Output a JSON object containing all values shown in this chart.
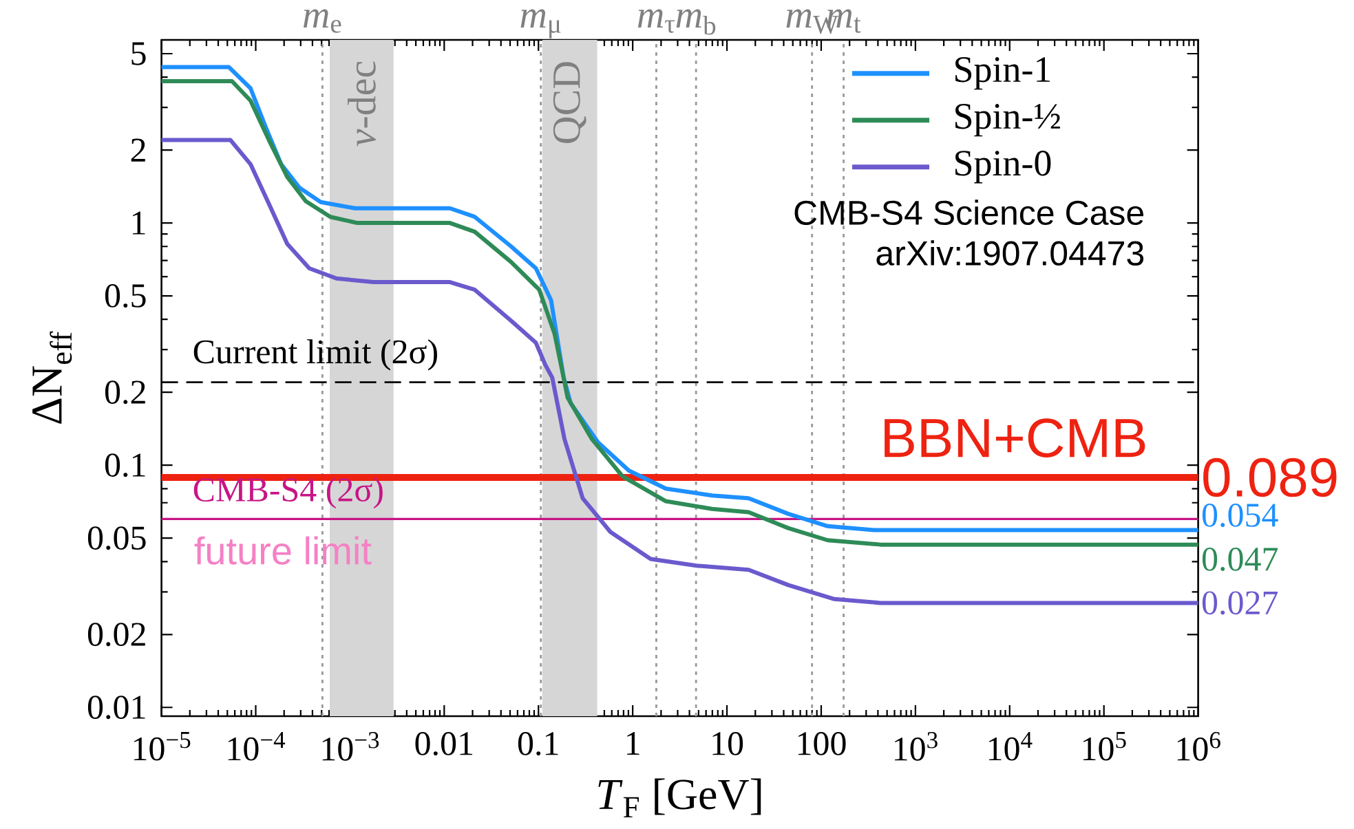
{
  "chart_data": {
    "type": "line",
    "xlabel": "*T*$_{F}$ [GeV]",
    "ylabel": "ΔN$_{eff}$",
    "log": "xy",
    "grid": false,
    "legend": "top right",
    "marker": "none",
    "line_style": "solid",
    "xlim": [
      1e-05,
      1000000.0
    ],
    "ylim": [
      0.0092,
      5.7
    ],
    "xticks": [
      {
        "value": 1e-05,
        "label": "10$^{−5}$"
      },
      {
        "value": 0.0001,
        "label": "10$^{−4}$"
      },
      {
        "value": 0.001,
        "label": "10$^{−3}$"
      },
      0.01,
      0.1,
      1,
      10,
      100,
      {
        "value": 1000,
        "label": "10$^{3}$"
      },
      {
        "value": 10000,
        "label": "10$^{4}$"
      },
      {
        "value": 100000,
        "label": "10$^{5}$"
      },
      {
        "value": 1000000,
        "label": "10$^{6}$"
      }
    ],
    "yticks": [
      0.01,
      0.02,
      0.05,
      0.1,
      0.2,
      0.5,
      1,
      2,
      5
    ],
    "series": [
      {
        "name": "Spin-1",
        "color": "#1e90ff",
        "x": [
          1e-05,
          5.2e-05,
          8.8e-05,
          0.000127,
          0.000186,
          0.00029,
          0.00049,
          0.00113,
          0.0115,
          0.0211,
          0.0513,
          0.094,
          0.136,
          0.185,
          0.22,
          0.43,
          0.91,
          2.25,
          6.95,
          17,
          44.7,
          117,
          363,
          1000000.0
        ],
        "values": [
          4.4,
          4.4,
          3.6,
          2.5,
          1.75,
          1.4,
          1.22,
          1.15,
          1.15,
          1.06,
          0.8,
          0.65,
          0.48,
          0.23,
          0.18,
          0.124,
          0.095,
          0.08,
          0.075,
          0.073,
          0.063,
          0.056,
          0.054,
          0.054
        ],
        "value_labels": [
          null,
          null,
          null,
          null,
          null,
          null,
          null,
          null,
          null,
          null,
          null,
          null,
          null,
          null,
          null,
          null,
          null,
          null,
          null,
          null,
          null,
          null,
          null,
          "0.054"
        ]
      },
      {
        "name": "Spin-½",
        "color": "#2e8b57",
        "x": [
          1e-05,
          5.6e-05,
          8.8e-05,
          0.000138,
          0.000216,
          0.00034,
          0.00062,
          0.0012,
          0.0115,
          0.0211,
          0.0513,
          0.102,
          0.148,
          0.185,
          0.204,
          0.37,
          0.78,
          2.25,
          6.95,
          17,
          44.7,
          117,
          427,
          1000000.0
        ],
        "values": [
          3.85,
          3.85,
          3.2,
          2.2,
          1.55,
          1.23,
          1.06,
          1.0,
          1.0,
          0.92,
          0.69,
          0.53,
          0.35,
          0.23,
          0.19,
          0.128,
          0.09,
          0.071,
          0.066,
          0.064,
          0.055,
          0.049,
          0.047,
          0.047
        ],
        "value_labels": [
          null,
          null,
          null,
          null,
          null,
          null,
          null,
          null,
          null,
          null,
          null,
          null,
          null,
          null,
          null,
          null,
          null,
          null,
          null,
          null,
          null,
          null,
          null,
          "0.047"
        ]
      },
      {
        "name": "Spin-0",
        "color": "#6a5acd",
        "x": [
          1e-05,
          5.4e-05,
          8.8e-05,
          0.000138,
          0.000216,
          0.00037,
          0.00072,
          0.00178,
          0.0115,
          0.0211,
          0.0513,
          0.094,
          0.118,
          0.14,
          0.189,
          0.295,
          0.58,
          1.55,
          4.76,
          17,
          44.7,
          138,
          427,
          1000000.0
        ],
        "values": [
          2.2,
          2.2,
          1.75,
          1.2,
          0.82,
          0.65,
          0.59,
          0.57,
          0.57,
          0.53,
          0.395,
          0.32,
          0.26,
          0.23,
          0.128,
          0.073,
          0.053,
          0.041,
          0.0385,
          0.037,
          0.032,
          0.028,
          0.027,
          0.027
        ],
        "value_labels": [
          null,
          null,
          null,
          null,
          null,
          null,
          null,
          null,
          null,
          null,
          null,
          null,
          null,
          null,
          null,
          null,
          null,
          null,
          null,
          null,
          null,
          null,
          null,
          "0.027"
        ]
      }
    ],
    "bands": [
      {
        "axis": "x",
        "from": 0.00061,
        "to": 0.0029,
        "label": "*ν*-dec",
        "color": "#d6d6d6"
      },
      {
        "axis": "x",
        "from": 0.11,
        "to": 0.42,
        "label": "QCD",
        "color": "#d6d6d6"
      }
    ],
    "ref_lines": [
      {
        "axis": "x",
        "value": 0.00051,
        "label": "*m*$_{e}$",
        "color": "#999999",
        "line_style": "dotted"
      },
      {
        "axis": "x",
        "value": 0.106,
        "label": "*m*$_{μ}$",
        "color": "#999999",
        "line_style": "dotted"
      },
      {
        "axis": "x",
        "value": 1.78,
        "label": "*m*$_{τ}$",
        "color": "#999999",
        "line_style": "dotted"
      },
      {
        "axis": "x",
        "value": 4.7,
        "label": "*m*$_{b}$",
        "color": "#999999",
        "line_style": "dotted"
      },
      {
        "axis": "x",
        "value": 80,
        "label": "*m*$_{W}$",
        "color": "#999999",
        "line_style": "dotted"
      },
      {
        "axis": "x",
        "value": 173,
        "label": "*m*$_{t}$",
        "color": "#999999",
        "line_style": "dotted"
      },
      {
        "axis": "y",
        "value": 0.22,
        "label": "Current limit (2σ)",
        "color": "#000000",
        "line_style": "dashed"
      },
      {
        "axis": "y",
        "value": 0.089,
        "label": "BBN+CMB",
        "color": "#ee2211",
        "line_style": "solid"
      },
      {
        "axis": "y",
        "value": 0.06,
        "label": "CMB-S4 (2σ)",
        "color": "#c71585",
        "line_style": "solid"
      }
    ],
    "annotations": [
      "CMB-S4 Science Case",
      "arXiv:1907.04473",
      "future limit",
      "0.089"
    ]
  }
}
